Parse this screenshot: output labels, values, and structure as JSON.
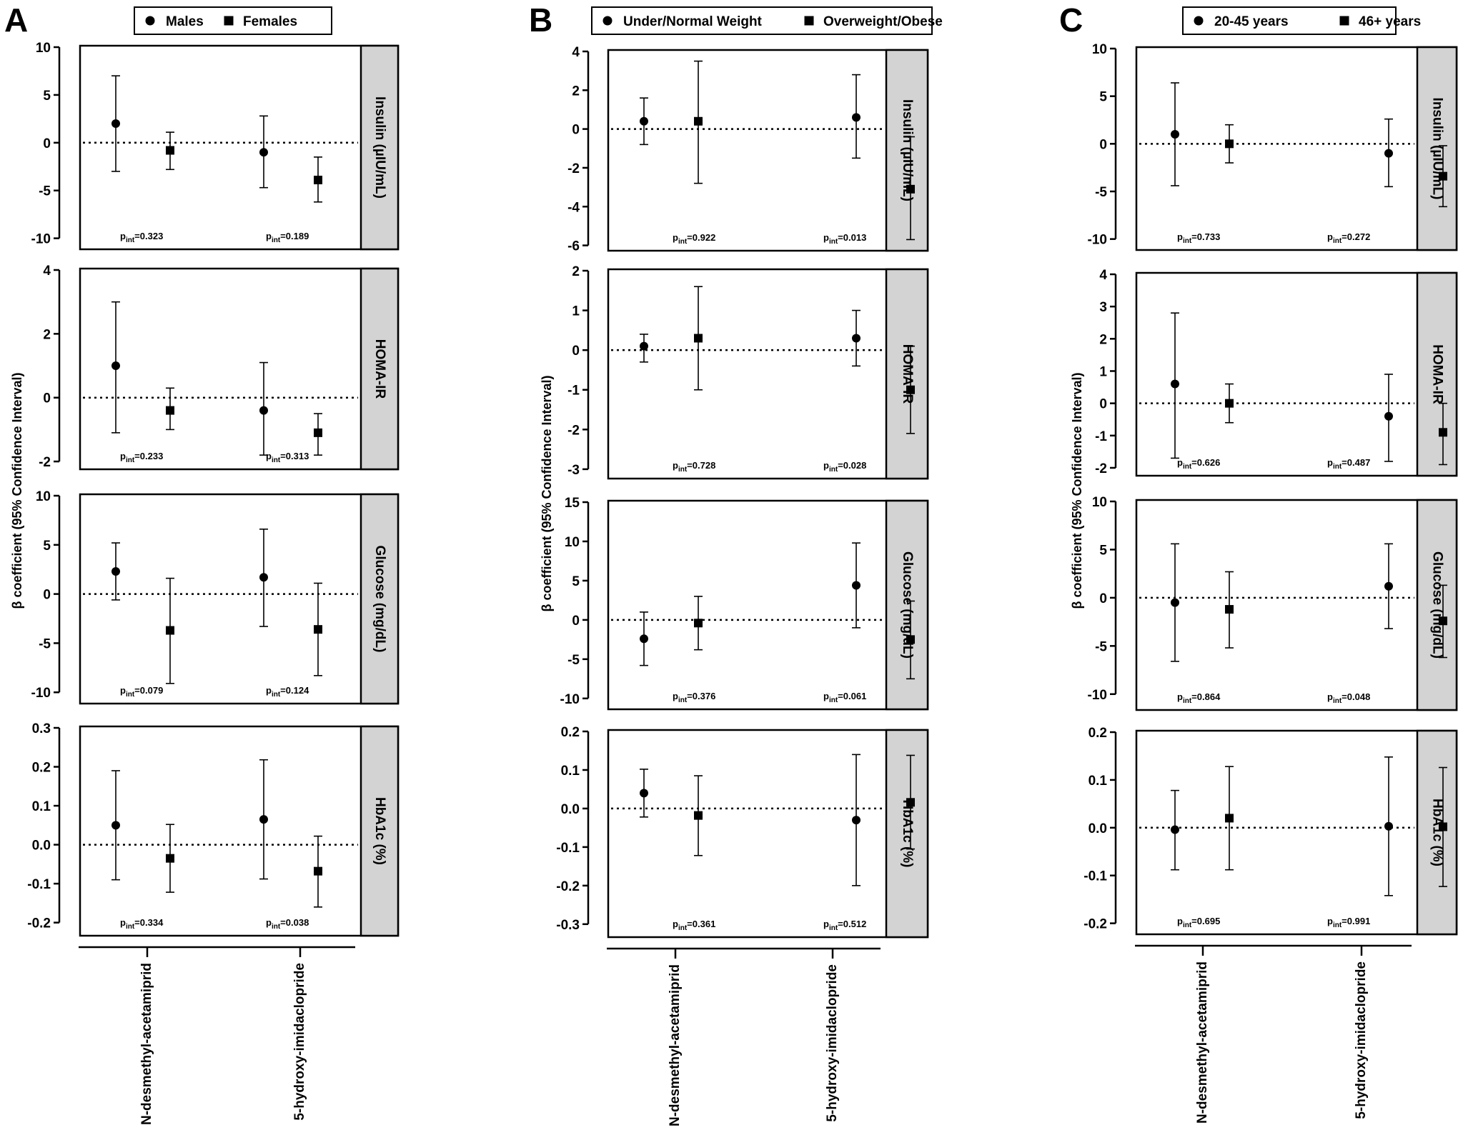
{
  "figure": {
    "x_categories": [
      "N-desmethyl-acetamiprid",
      "5-hydroxy-imidaclopride"
    ],
    "y_axis_label": "β coefficient (95% Confidence Interval)",
    "colors": {
      "ink": "#000000",
      "strip": "#d3d3d3",
      "background": "#ffffff"
    },
    "marker_shapes": [
      "circle",
      "square"
    ]
  },
  "chart_data": [
    {
      "panel_letter": "A",
      "legend": [
        "Males",
        "Females"
      ],
      "subplots": [
        {
          "type": "scatter",
          "strip_label": "Insulin (µIU/mL)",
          "ylim": [
            -11,
            10
          ],
          "yticks": [
            "10",
            "5",
            "0",
            "-5",
            "-10"
          ],
          "ytick_values": [
            10,
            5,
            0,
            -5,
            -10
          ],
          "series": [
            {
              "name": "Males",
              "marker": "circle",
              "points": [
                {
                  "x": "N-desmethyl-acetamiprid",
                  "y": 2.0,
                  "lo": -3.0,
                  "hi": 7.0
                },
                {
                  "x": "5-hydroxy-imidaclopride",
                  "y": -1.0,
                  "lo": -4.7,
                  "hi": 2.8
                }
              ]
            },
            {
              "name": "Females",
              "marker": "square",
              "points": [
                {
                  "x": "N-desmethyl-acetamiprid",
                  "y": -0.8,
                  "lo": -2.8,
                  "hi": 1.1
                },
                {
                  "x": "5-hydroxy-imidaclopride",
                  "y": -3.9,
                  "lo": -6.2,
                  "hi": -1.5
                }
              ]
            }
          ],
          "p_values": [
            "0.323",
            "0.189"
          ]
        },
        {
          "type": "scatter",
          "strip_label": "HOMA-IR",
          "ylim": [
            -2.2,
            4
          ],
          "yticks": [
            "4",
            "2",
            "0",
            "-2"
          ],
          "ytick_values": [
            4,
            2,
            0,
            -2
          ],
          "series": [
            {
              "name": "Males",
              "marker": "circle",
              "points": [
                {
                  "x": "N-desmethyl-acetamiprid",
                  "y": 1.0,
                  "lo": -1.1,
                  "hi": 3.0
                },
                {
                  "x": "5-hydroxy-imidaclopride",
                  "y": -0.4,
                  "lo": -1.8,
                  "hi": 1.1
                }
              ]
            },
            {
              "name": "Females",
              "marker": "square",
              "points": [
                {
                  "x": "N-desmethyl-acetamiprid",
                  "y": -0.4,
                  "lo": -1.0,
                  "hi": 0.3
                },
                {
                  "x": "5-hydroxy-imidaclopride",
                  "y": -1.1,
                  "lo": -1.8,
                  "hi": -0.5
                }
              ]
            }
          ],
          "p_values": [
            "0.233",
            "0.313"
          ]
        },
        {
          "type": "scatter",
          "strip_label": "Glucose (mg/dL)",
          "ylim": [
            -11,
            10
          ],
          "yticks": [
            "10",
            "5",
            "0",
            "-5",
            "-10"
          ],
          "ytick_values": [
            10,
            5,
            0,
            -5,
            -10
          ],
          "series": [
            {
              "name": "Males",
              "marker": "circle",
              "points": [
                {
                  "x": "N-desmethyl-acetamiprid",
                  "y": 2.3,
                  "lo": -0.6,
                  "hi": 5.2
                },
                {
                  "x": "5-hydroxy-imidaclopride",
                  "y": 1.7,
                  "lo": -3.3,
                  "hi": 6.6
                }
              ]
            },
            {
              "name": "Females",
              "marker": "square",
              "points": [
                {
                  "x": "N-desmethyl-acetamiprid",
                  "y": -3.7,
                  "lo": -9.1,
                  "hi": 1.6
                },
                {
                  "x": "5-hydroxy-imidaclopride",
                  "y": -3.6,
                  "lo": -8.3,
                  "hi": 1.1
                }
              ]
            }
          ],
          "p_values": [
            "0.079",
            "0.124"
          ]
        },
        {
          "type": "scatter",
          "strip_label": "HbA1c (%)",
          "ylim": [
            -0.23,
            0.3
          ],
          "yticks": [
            "0.3",
            "0.2",
            "0.1",
            "0.0",
            "-0.1",
            "-0.2"
          ],
          "ytick_values": [
            0.3,
            0.2,
            0.1,
            0.0,
            -0.1,
            -0.2
          ],
          "series": [
            {
              "name": "Males",
              "marker": "circle",
              "points": [
                {
                  "x": "N-desmethyl-acetamiprid",
                  "y": 0.05,
                  "lo": -0.09,
                  "hi": 0.19
                },
                {
                  "x": "5-hydroxy-imidaclopride",
                  "y": 0.065,
                  "lo": -0.088,
                  "hi": 0.218
                }
              ]
            },
            {
              "name": "Females",
              "marker": "square",
              "points": [
                {
                  "x": "N-desmethyl-acetamiprid",
                  "y": -0.035,
                  "lo": -0.122,
                  "hi": 0.052
                },
                {
                  "x": "5-hydroxy-imidaclopride",
                  "y": -0.068,
                  "lo": -0.16,
                  "hi": 0.022
                }
              ]
            }
          ],
          "p_values": [
            "0.334",
            "0.038"
          ]
        }
      ]
    },
    {
      "panel_letter": "B",
      "legend": [
        "Under/Normal Weight",
        "Overweight/Obese"
      ],
      "subplots": [
        {
          "type": "scatter",
          "strip_label": "Insulin (µIU/mL)",
          "ylim": [
            -6.2,
            4
          ],
          "yticks": [
            "4",
            "2",
            "0",
            "-2",
            "-4",
            "-6"
          ],
          "ytick_values": [
            4,
            2,
            0,
            -2,
            -4,
            -6
          ],
          "series": [
            {
              "name": "Under/Normal Weight",
              "marker": "circle",
              "points": [
                {
                  "x": "N-desmethyl-acetamiprid",
                  "y": 0.4,
                  "lo": -0.8,
                  "hi": 1.6
                },
                {
                  "x": "5-hydroxy-imidaclopride",
                  "y": 0.6,
                  "lo": -1.5,
                  "hi": 2.8
                }
              ]
            },
            {
              "name": "Overweight/Obese",
              "marker": "square",
              "points": [
                {
                  "x": "N-desmethyl-acetamiprid",
                  "y": 0.4,
                  "lo": -2.8,
                  "hi": 3.5
                },
                {
                  "x": "5-hydroxy-imidaclopride",
                  "y": -3.1,
                  "lo": -5.7,
                  "hi": -0.4
                }
              ]
            }
          ],
          "p_values": [
            "0.922",
            "0.013"
          ]
        },
        {
          "type": "scatter",
          "strip_label": "HOMA-IR",
          "ylim": [
            -3.2,
            2
          ],
          "yticks": [
            "2",
            "1",
            "0",
            "-1",
            "-2",
            "-3"
          ],
          "ytick_values": [
            2,
            1,
            0,
            -1,
            -2,
            -3
          ],
          "series": [
            {
              "name": "Under/Normal Weight",
              "marker": "circle",
              "points": [
                {
                  "x": "N-desmethyl-acetamiprid",
                  "y": 0.1,
                  "lo": -0.3,
                  "hi": 0.4
                },
                {
                  "x": "5-hydroxy-imidaclopride",
                  "y": 0.3,
                  "lo": -0.4,
                  "hi": 1.0
                }
              ]
            },
            {
              "name": "Overweight/Obese",
              "marker": "square",
              "points": [
                {
                  "x": "N-desmethyl-acetamiprid",
                  "y": 0.3,
                  "lo": -1.0,
                  "hi": 1.6
                },
                {
                  "x": "5-hydroxy-imidaclopride",
                  "y": -1.0,
                  "lo": -2.1,
                  "hi": 0.1
                }
              ]
            }
          ],
          "p_values": [
            "0.728",
            "0.028"
          ]
        },
        {
          "type": "scatter",
          "strip_label": "Glucose (mg/dL)",
          "ylim": [
            -11.2,
            15
          ],
          "yticks": [
            "15",
            "10",
            "5",
            "0",
            "-5",
            "-10"
          ],
          "ytick_values": [
            15,
            10,
            5,
            0,
            -5,
            -10
          ],
          "series": [
            {
              "name": "Under/Normal Weight",
              "marker": "circle",
              "points": [
                {
                  "x": "N-desmethyl-acetamiprid",
                  "y": -2.4,
                  "lo": -5.8,
                  "hi": 1.0
                },
                {
                  "x": "5-hydroxy-imidaclopride",
                  "y": 4.4,
                  "lo": -1.0,
                  "hi": 9.8
                }
              ]
            },
            {
              "name": "Overweight/Obese",
              "marker": "square",
              "points": [
                {
                  "x": "N-desmethyl-acetamiprid",
                  "y": -0.4,
                  "lo": -3.8,
                  "hi": 3.0
                },
                {
                  "x": "5-hydroxy-imidaclopride",
                  "y": -2.5,
                  "lo": -7.5,
                  "hi": 2.4
                }
              ]
            }
          ],
          "p_values": [
            "0.376",
            "0.061"
          ]
        },
        {
          "type": "scatter",
          "strip_label": "HbA1c (%)",
          "ylim": [
            -0.33,
            0.2
          ],
          "yticks": [
            "0.2",
            "0.1",
            "0.0",
            "-0.1",
            "-0.2",
            "-0.3"
          ],
          "ytick_values": [
            0.2,
            0.1,
            0.0,
            -0.1,
            -0.2,
            -0.3
          ],
          "series": [
            {
              "name": "Under/Normal Weight",
              "marker": "circle",
              "points": [
                {
                  "x": "N-desmethyl-acetamiprid",
                  "y": 0.04,
                  "lo": -0.022,
                  "hi": 0.102
                },
                {
                  "x": "5-hydroxy-imidaclopride",
                  "y": -0.03,
                  "lo": -0.2,
                  "hi": 0.14
                }
              ]
            },
            {
              "name": "Overweight/Obese",
              "marker": "square",
              "points": [
                {
                  "x": "N-desmethyl-acetamiprid",
                  "y": -0.018,
                  "lo": -0.122,
                  "hi": 0.085
                },
                {
                  "x": "5-hydroxy-imidaclopride",
                  "y": 0.016,
                  "lo": -0.105,
                  "hi": 0.138
                }
              ]
            }
          ],
          "p_values": [
            "0.361",
            "0.512"
          ]
        }
      ]
    },
    {
      "panel_letter": "C",
      "legend": [
        "20-45 years",
        "46+ years"
      ],
      "subplots": [
        {
          "type": "scatter",
          "strip_label": "Insulin (µIU/mL)",
          "ylim": [
            -11,
            10
          ],
          "yticks": [
            "10",
            "5",
            "0",
            "-5",
            "-10"
          ],
          "ytick_values": [
            10,
            5,
            0,
            -5,
            -10
          ],
          "series": [
            {
              "name": "20-45 years",
              "marker": "circle",
              "points": [
                {
                  "x": "N-desmethyl-acetamiprid",
                  "y": 1.0,
                  "lo": -4.4,
                  "hi": 6.4
                },
                {
                  "x": "5-hydroxy-imidaclopride",
                  "y": -1.0,
                  "lo": -4.5,
                  "hi": 2.6
                }
              ]
            },
            {
              "name": "46+ years",
              "marker": "square",
              "points": [
                {
                  "x": "N-desmethyl-acetamiprid",
                  "y": 0.0,
                  "lo": -2.0,
                  "hi": 2.0
                },
                {
                  "x": "5-hydroxy-imidaclopride",
                  "y": -3.4,
                  "lo": -6.6,
                  "hi": -0.2
                }
              ]
            }
          ],
          "p_values": [
            "0.733",
            "0.272"
          ]
        },
        {
          "type": "scatter",
          "strip_label": "HOMA-IR",
          "ylim": [
            -2.2,
            4
          ],
          "yticks": [
            "4",
            "3",
            "2",
            "1",
            "0",
            "-1",
            "-2"
          ],
          "ytick_values": [
            4,
            3,
            2,
            1,
            0,
            -1,
            -2
          ],
          "series": [
            {
              "name": "20-45 years",
              "marker": "circle",
              "points": [
                {
                  "x": "N-desmethyl-acetamiprid",
                  "y": 0.6,
                  "lo": -1.7,
                  "hi": 2.8
                },
                {
                  "x": "5-hydroxy-imidaclopride",
                  "y": -0.4,
                  "lo": -1.8,
                  "hi": 0.9
                }
              ]
            },
            {
              "name": "46+ years",
              "marker": "square",
              "points": [
                {
                  "x": "N-desmethyl-acetamiprid",
                  "y": 0.0,
                  "lo": -0.6,
                  "hi": 0.6
                },
                {
                  "x": "5-hydroxy-imidaclopride",
                  "y": -0.9,
                  "lo": -1.9,
                  "hi": 0.0
                }
              ]
            }
          ],
          "p_values": [
            "0.626",
            "0.487"
          ]
        },
        {
          "type": "scatter",
          "strip_label": "Glucose (mg/dL)",
          "ylim": [
            -11.5,
            10
          ],
          "yticks": [
            "10",
            "5",
            "0",
            "-5",
            "-10"
          ],
          "ytick_values": [
            10,
            5,
            0,
            -5,
            -10
          ],
          "series": [
            {
              "name": "20-45 years",
              "marker": "circle",
              "points": [
                {
                  "x": "N-desmethyl-acetamiprid",
                  "y": -0.5,
                  "lo": -6.6,
                  "hi": 5.6
                },
                {
                  "x": "5-hydroxy-imidaclopride",
                  "y": 1.2,
                  "lo": -3.2,
                  "hi": 5.6
                }
              ]
            },
            {
              "name": "46+ years",
              "marker": "square",
              "points": [
                {
                  "x": "N-desmethyl-acetamiprid",
                  "y": -1.2,
                  "lo": -5.2,
                  "hi": 2.7
                },
                {
                  "x": "5-hydroxy-imidaclopride",
                  "y": -2.4,
                  "lo": -6.2,
                  "hi": 1.3
                }
              ]
            }
          ],
          "p_values": [
            "0.864",
            "0.048"
          ]
        },
        {
          "type": "scatter",
          "strip_label": "HbA1c (%)",
          "ylim": [
            -0.22,
            0.2
          ],
          "yticks": [
            "0.2",
            "0.1",
            "0.0",
            "-0.1",
            "-0.2"
          ],
          "ytick_values": [
            0.2,
            0.1,
            0.0,
            -0.1,
            -0.2
          ],
          "series": [
            {
              "name": "20-45 years",
              "marker": "circle",
              "points": [
                {
                  "x": "N-desmethyl-acetamiprid",
                  "y": -0.004,
                  "lo": -0.088,
                  "hi": 0.078
                },
                {
                  "x": "5-hydroxy-imidaclopride",
                  "y": 0.003,
                  "lo": -0.142,
                  "hi": 0.148
                }
              ]
            },
            {
              "name": "46+ years",
              "marker": "square",
              "points": [
                {
                  "x": "N-desmethyl-acetamiprid",
                  "y": 0.02,
                  "lo": -0.088,
                  "hi": 0.128
                },
                {
                  "x": "5-hydroxy-imidaclopride",
                  "y": 0.002,
                  "lo": -0.123,
                  "hi": 0.126
                }
              ]
            }
          ],
          "p_values": [
            "0.695",
            "0.991"
          ]
        }
      ]
    }
  ]
}
